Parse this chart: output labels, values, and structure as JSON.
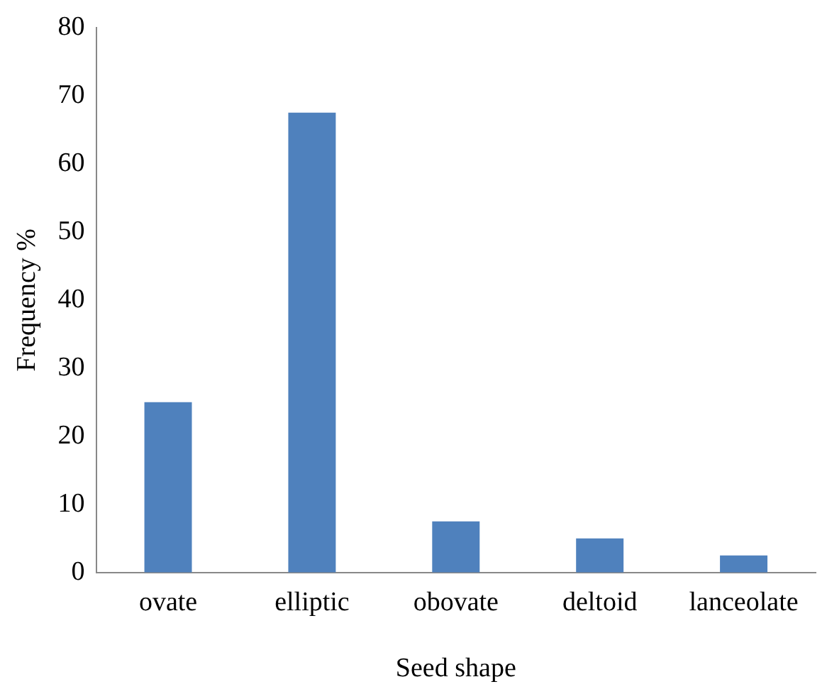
{
  "chart_data": {
    "type": "bar",
    "xlabel": "Seed shape",
    "ylabel": "Frequency %",
    "categories": [
      "ovate",
      "elliptic",
      "obovate",
      "deltoid",
      "lanceolate"
    ],
    "values": [
      25,
      67.5,
      7.5,
      5,
      2.5
    ],
    "color": "#4f81bd",
    "ylim": [
      0,
      80
    ],
    "yticks": [
      0,
      10,
      20,
      30,
      40,
      50,
      60,
      70,
      80
    ],
    "grid": false,
    "legend": false
  }
}
